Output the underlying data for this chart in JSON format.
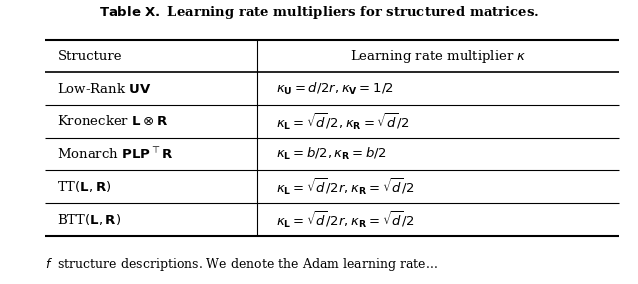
{
  "col_header_left": "Structure",
  "col_header_right": "Learning rate multiplier $\\kappa$",
  "row_structures": [
    "Low-Rank $\\mathbf{UV}$",
    "Kronecker $\\mathbf{L} \\otimes \\mathbf{R}$",
    "Monarch $\\mathbf{PLP}^\\top\\mathbf{R}$",
    "TT$(\\mathbf{L}, \\mathbf{R})$",
    "BTT$(\\mathbf{L}, \\mathbf{R})$"
  ],
  "row_formulas": [
    "$\\kappa_\\mathbf{U} = d/2r, \\kappa_\\mathbf{V} = 1/2$",
    "$\\kappa_\\mathbf{L} = \\sqrt{d}/2, \\kappa_\\mathbf{R} = \\sqrt{d}/2$",
    "$\\kappa_\\mathbf{L} = b/2, \\kappa_\\mathbf{R} = b/2$",
    "$\\kappa_\\mathbf{L} = \\sqrt{d}/2r, \\kappa_\\mathbf{R} = \\sqrt{d}/2$",
    "$\\kappa_\\mathbf{L} = \\sqrt{d}/2r, \\kappa_\\mathbf{R} = \\sqrt{d}/2$"
  ],
  "col_split": 0.37,
  "bg_color": "#ffffff",
  "line_color": "#000000",
  "font_size": 9.5,
  "fig_width": 6.38,
  "fig_height": 2.84,
  "caption_text": "f  structure descriptions. We denote the Adam learning rate..."
}
